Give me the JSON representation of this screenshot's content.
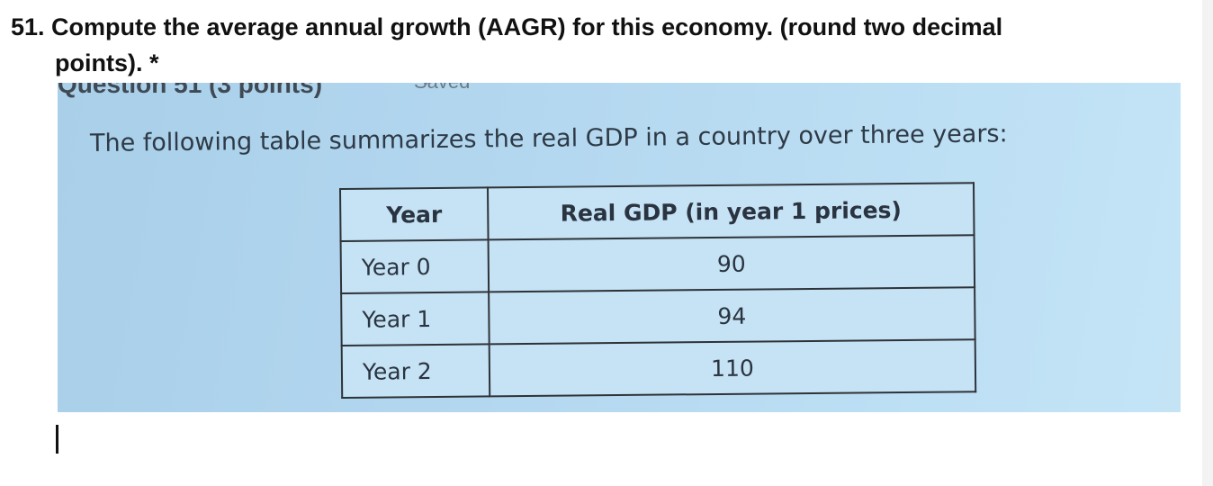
{
  "question": {
    "title_line1": "51. Compute the average annual growth (AAGR) for this economy. (round two decimal",
    "title_line2": "points). *"
  },
  "image": {
    "header_label": "Question 51 (3 points)",
    "saved_label": "Saved",
    "intro_text": "The following table summarizes the real GDP in a country over three years:",
    "table": {
      "headers": [
        "Year",
        "Real GDP (in year 1 prices)"
      ],
      "rows": [
        [
          "Year 0",
          "90"
        ],
        [
          "Year 1",
          "94"
        ],
        [
          "Year 2",
          "110"
        ]
      ]
    }
  },
  "colors": {
    "photo_background": "#b3d7ef",
    "text": "#111111"
  }
}
